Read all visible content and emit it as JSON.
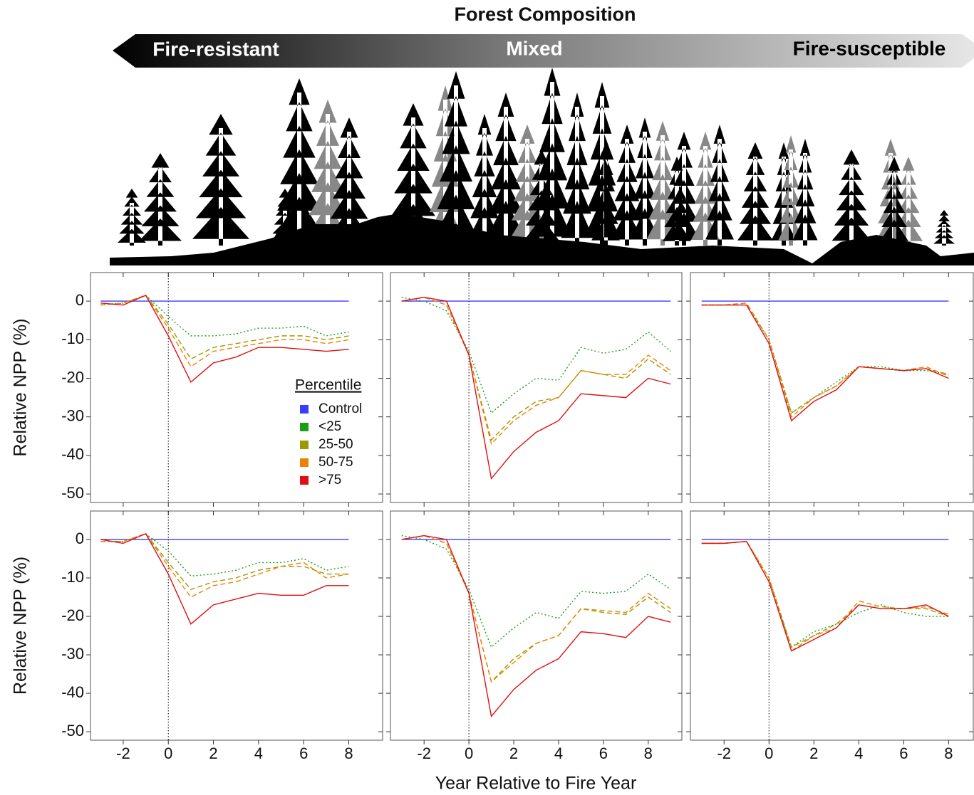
{
  "header": {
    "title": "Forest Composition",
    "arrow_labels": [
      "Fire-resistant",
      "Mixed",
      "Fire-susceptible"
    ]
  },
  "xlabel": "Year Relative to Fire Year",
  "chart_data": [
    {
      "type": "line",
      "ylabel": "Relative NPP (%)",
      "legend_title": "Percentile",
      "x": [
        -3,
        -2,
        -1,
        0,
        1,
        2,
        3,
        4,
        5,
        6,
        7,
        8
      ],
      "xlim": [
        -3.45,
        9.5
      ],
      "xticks": [
        -2,
        0,
        2,
        4,
        6,
        8
      ],
      "ylim": [
        -52.2,
        7.4
      ],
      "yticks": [
        0,
        -10,
        -20,
        -30,
        -40,
        -50
      ],
      "vline": 0,
      "series": [
        {
          "name": "Control",
          "color": "#3b3bff",
          "dash": "solid",
          "values": [
            0,
            0,
            0,
            0,
            0,
            0,
            0,
            0,
            0,
            0,
            0,
            0
          ]
        },
        {
          "name": "<25",
          "color": "#1a9e1a",
          "dash": "dotted",
          "values": [
            -1,
            -0.5,
            1.5,
            -4,
            -9,
            -9,
            -8.5,
            -7,
            -7,
            -6.5,
            -9,
            -8
          ]
        },
        {
          "name": "25-50",
          "color": "#9a9a00",
          "dash": "dashed",
          "values": [
            -1,
            -0.5,
            1.5,
            -6,
            -15,
            -12,
            -11,
            -10,
            -9,
            -9,
            -10,
            -9
          ]
        },
        {
          "name": "50-75",
          "color": "#f08000",
          "dash": "dashed",
          "values": [
            -1,
            -0.5,
            1.5,
            -7,
            -17,
            -13,
            -12,
            -11,
            -10,
            -10,
            -11,
            -10
          ]
        },
        {
          "name": ">75",
          "color": "#e01010",
          "dash": "solid",
          "values": [
            -0.5,
            -1,
            1.5,
            -9,
            -21,
            -16,
            -14.5,
            -12,
            -12,
            -12.5,
            -13,
            -12.5
          ]
        }
      ]
    },
    {
      "type": "line",
      "x": [
        -3,
        -2,
        -1,
        0,
        1,
        2,
        3,
        4,
        5,
        6,
        7,
        8,
        9
      ],
      "xlim": [
        -3.5,
        9.5
      ],
      "xticks": [
        -2,
        0,
        2,
        4,
        6,
        8
      ],
      "ylim": [
        -52.2,
        7.4
      ],
      "yticks": [
        0,
        -10,
        -20,
        -30,
        -40,
        -50
      ],
      "vline": 0,
      "series": [
        {
          "color": "#3b3bff",
          "dash": "solid",
          "values": [
            0,
            0,
            0,
            0,
            0,
            0,
            0,
            0,
            0,
            0,
            0,
            0,
            0
          ]
        },
        {
          "color": "#1a9e1a",
          "dash": "dotted",
          "values": [
            1,
            0,
            -2.5,
            -13,
            -29,
            -24,
            -20,
            -20.5,
            -12,
            -13.5,
            -12.5,
            -8,
            -13
          ]
        },
        {
          "color": "#9a9a00",
          "dash": "dashed",
          "values": [
            0,
            1,
            -1,
            -14,
            -36,
            -30,
            -26,
            -25,
            -18,
            -19,
            -20,
            -15,
            -19
          ]
        },
        {
          "color": "#f08000",
          "dash": "dashed",
          "values": [
            0,
            1,
            -1,
            -14,
            -37,
            -31,
            -27,
            -25,
            -18,
            -19,
            -19,
            -14,
            -18
          ]
        },
        {
          "color": "#e01010",
          "dash": "solid",
          "values": [
            0,
            1,
            0,
            -14,
            -46,
            -39,
            -34,
            -31,
            -24,
            -24.5,
            -25,
            -20,
            -21.5
          ]
        }
      ]
    },
    {
      "type": "line",
      "x": [
        -3,
        -2,
        -1,
        0,
        1,
        2,
        3,
        4,
        5,
        6,
        7,
        8
      ],
      "xlim": [
        -3.5,
        9.1
      ],
      "xticks": [
        -2,
        0,
        2,
        4,
        6,
        8
      ],
      "ylim": [
        -52.2,
        7.4
      ],
      "yticks": [
        0,
        -10,
        -20,
        -30,
        -40,
        -50
      ],
      "vline": 0,
      "series": [
        {
          "color": "#3b3bff",
          "dash": "solid",
          "values": [
            0,
            0,
            0,
            0,
            0,
            0,
            0,
            0,
            0,
            0,
            0,
            0
          ]
        },
        {
          "color": "#1a9e1a",
          "dash": "dotted",
          "values": [
            -1,
            -1,
            -1,
            -10,
            -29,
            -25,
            -21,
            -17,
            -17,
            -18,
            -18,
            -19
          ]
        },
        {
          "color": "#9a9a00",
          "dash": "dashed",
          "values": [
            -1,
            -1,
            -0.5,
            -10,
            -29,
            -25,
            -22,
            -17,
            -17.5,
            -18,
            -17.5,
            -19
          ]
        },
        {
          "color": "#f08000",
          "dash": "dashed",
          "values": [
            -1,
            -1,
            -0.5,
            -10,
            -30,
            -25,
            -22,
            -17,
            -17.5,
            -18,
            -17,
            -19.5
          ]
        },
        {
          "color": "#e01010",
          "dash": "solid",
          "values": [
            -1,
            -1,
            -1,
            -11,
            -31,
            -26,
            -23,
            -17,
            -17.5,
            -18,
            -17.5,
            -20
          ]
        }
      ]
    },
    {
      "type": "line",
      "ylabel": "Relative NPP (%)",
      "x": [
        -3,
        -2,
        -1,
        0,
        1,
        2,
        3,
        4,
        5,
        6,
        7,
        8
      ],
      "xlim": [
        -3.45,
        9.5
      ],
      "xticks": [
        -2,
        0,
        2,
        4,
        6,
        8
      ],
      "ylim": [
        -52.2,
        7.4
      ],
      "yticks": [
        0,
        -10,
        -20,
        -30,
        -40,
        -50
      ],
      "vline": 0,
      "series": [
        {
          "color": "#3b3bff",
          "dash": "solid",
          "values": [
            0,
            0,
            0,
            0,
            0,
            0,
            0,
            0,
            0,
            0,
            0,
            0
          ]
        },
        {
          "color": "#1a9e1a",
          "dash": "dotted",
          "values": [
            -0.5,
            -0.5,
            1.5,
            -3,
            -9.5,
            -9,
            -8,
            -6,
            -6,
            -5,
            -8,
            -7
          ]
        },
        {
          "color": "#9a9a00",
          "dash": "dashed",
          "values": [
            -0.5,
            -0.5,
            1.5,
            -6,
            -13,
            -11,
            -10,
            -8,
            -7,
            -7,
            -9,
            -9
          ]
        },
        {
          "color": "#f08000",
          "dash": "dashed",
          "values": [
            -0.5,
            -0.5,
            1.5,
            -7,
            -15,
            -12,
            -11,
            -9,
            -7,
            -6,
            -10,
            -9
          ]
        },
        {
          "color": "#e01010",
          "dash": "solid",
          "values": [
            0,
            -1,
            1.5,
            -9,
            -22,
            -17,
            -15.5,
            -14,
            -14.5,
            -14.5,
            -12,
            -12
          ]
        }
      ]
    },
    {
      "type": "line",
      "x": [
        -3,
        -2,
        -1,
        0,
        1,
        2,
        3,
        4,
        5,
        6,
        7,
        8,
        9
      ],
      "xlim": [
        -3.5,
        9.5
      ],
      "xticks": [
        -2,
        0,
        2,
        4,
        6,
        8
      ],
      "ylim": [
        -52.2,
        7.4
      ],
      "yticks": [
        0,
        -10,
        -20,
        -30,
        -40,
        -50
      ],
      "vline": 0,
      "series": [
        {
          "color": "#3b3bff",
          "dash": "solid",
          "values": [
            0,
            0,
            0,
            0,
            0,
            0,
            0,
            0,
            0,
            0,
            0,
            0,
            0
          ]
        },
        {
          "color": "#1a9e1a",
          "dash": "dotted",
          "values": [
            1,
            0,
            -2.5,
            -13,
            -28,
            -23,
            -19,
            -20.5,
            -13.5,
            -14,
            -13.5,
            -9,
            -13
          ]
        },
        {
          "color": "#9a9a00",
          "dash": "dashed",
          "values": [
            0,
            1,
            -1,
            -14,
            -37,
            -31,
            -27,
            -25,
            -18,
            -19,
            -19.5,
            -15,
            -19
          ]
        },
        {
          "color": "#f08000",
          "dash": "dashed",
          "values": [
            0,
            1,
            -1,
            -14,
            -37,
            -32,
            -27,
            -25,
            -18,
            -18.5,
            -19,
            -14,
            -18
          ]
        },
        {
          "color": "#e01010",
          "dash": "solid",
          "values": [
            0,
            1,
            0,
            -14,
            -46,
            -39,
            -34,
            -31,
            -24,
            -24.5,
            -25.5,
            -20,
            -21.5
          ]
        }
      ]
    },
    {
      "type": "line",
      "x": [
        -3,
        -2,
        -1,
        0,
        1,
        2,
        3,
        4,
        5,
        6,
        7,
        8
      ],
      "xlim": [
        -3.5,
        9.1
      ],
      "xticks": [
        -2,
        0,
        2,
        4,
        6,
        8
      ],
      "ylim": [
        -52.2,
        7.4
      ],
      "yticks": [
        0,
        -10,
        -20,
        -30,
        -40,
        -50
      ],
      "vline": 0,
      "series": [
        {
          "color": "#3b3bff",
          "dash": "solid",
          "values": [
            0,
            0,
            0,
            0,
            0,
            0,
            0,
            0,
            0,
            0,
            0,
            0
          ]
        },
        {
          "color": "#1a9e1a",
          "dash": "dotted",
          "values": [
            -1,
            -1,
            -0.5,
            -10,
            -28,
            -24,
            -22,
            -19,
            -17,
            -19,
            -20,
            -20
          ]
        },
        {
          "color": "#9a9a00",
          "dash": "dashed",
          "values": [
            -1,
            -1,
            -0.5,
            -10,
            -28,
            -25,
            -22,
            -17,
            -18,
            -18,
            -18,
            -20
          ]
        },
        {
          "color": "#f08000",
          "dash": "dashed",
          "values": [
            -1,
            -1,
            -0.5,
            -10,
            -29,
            -25,
            -23,
            -16,
            -17.5,
            -18,
            -17.5,
            -19.5
          ]
        },
        {
          "color": "#e01010",
          "dash": "solid",
          "values": [
            -1,
            -1,
            -0.5,
            -11,
            -29,
            -26,
            -23,
            -17,
            -18,
            -18,
            -17,
            -20
          ]
        }
      ]
    }
  ]
}
